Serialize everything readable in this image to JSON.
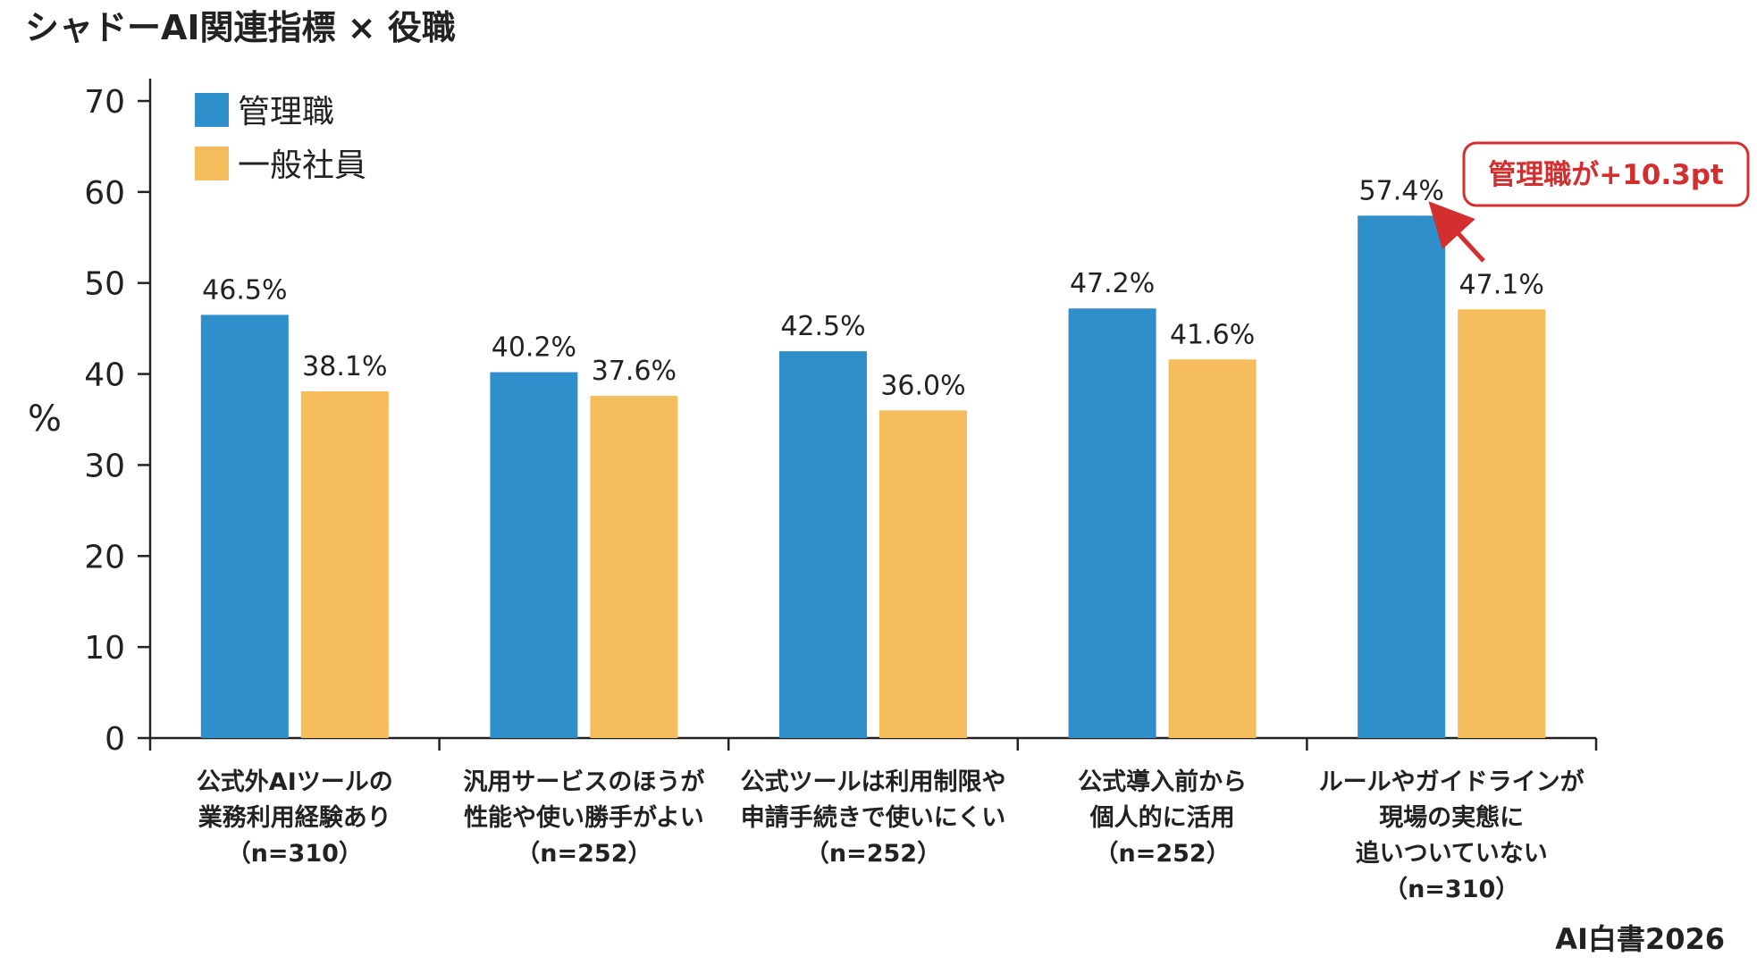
{
  "chart_data": {
    "type": "bar",
    "title": "シャドーAI関連指標 × 役職",
    "ylabel": "%",
    "ylim": [
      0,
      70
    ],
    "yticks": [
      0,
      10,
      20,
      30,
      40,
      50,
      60,
      70
    ],
    "grid": false,
    "legend_position": "top-left",
    "categories": [
      [
        "公式外AIツールの",
        "業務利用経験あり",
        "（n=310）"
      ],
      [
        "汎用サービスのほうが",
        "性能や使い勝手がよい",
        "（n=252）"
      ],
      [
        "公式ツールは利用制限や",
        "申請手続きで使いにくい",
        "（n=252）"
      ],
      [
        "公式導入前から",
        "個人的に活用",
        "（n=252）"
      ],
      [
        "ルールやガイドラインが",
        "現場の実態に",
        "追いついていない",
        "（n=310）"
      ]
    ],
    "series": [
      {
        "name": "管理職",
        "color": "#2e8fcb",
        "values": [
          46.5,
          40.2,
          42.5,
          47.2,
          57.4
        ],
        "labels": [
          "46.5%",
          "40.2%",
          "42.5%",
          "47.2%",
          "57.4%"
        ]
      },
      {
        "name": "一般社員",
        "color": "#f5bd5c",
        "values": [
          38.1,
          37.6,
          36.0,
          41.6,
          47.1
        ],
        "labels": [
          "38.1%",
          "37.6%",
          "36.0%",
          "41.6%",
          "47.1%"
        ]
      }
    ],
    "annotation": {
      "text": "管理職が+10.3pt",
      "color": "#d32f2f",
      "category_index": 4
    }
  },
  "brand": "AI白書2026"
}
